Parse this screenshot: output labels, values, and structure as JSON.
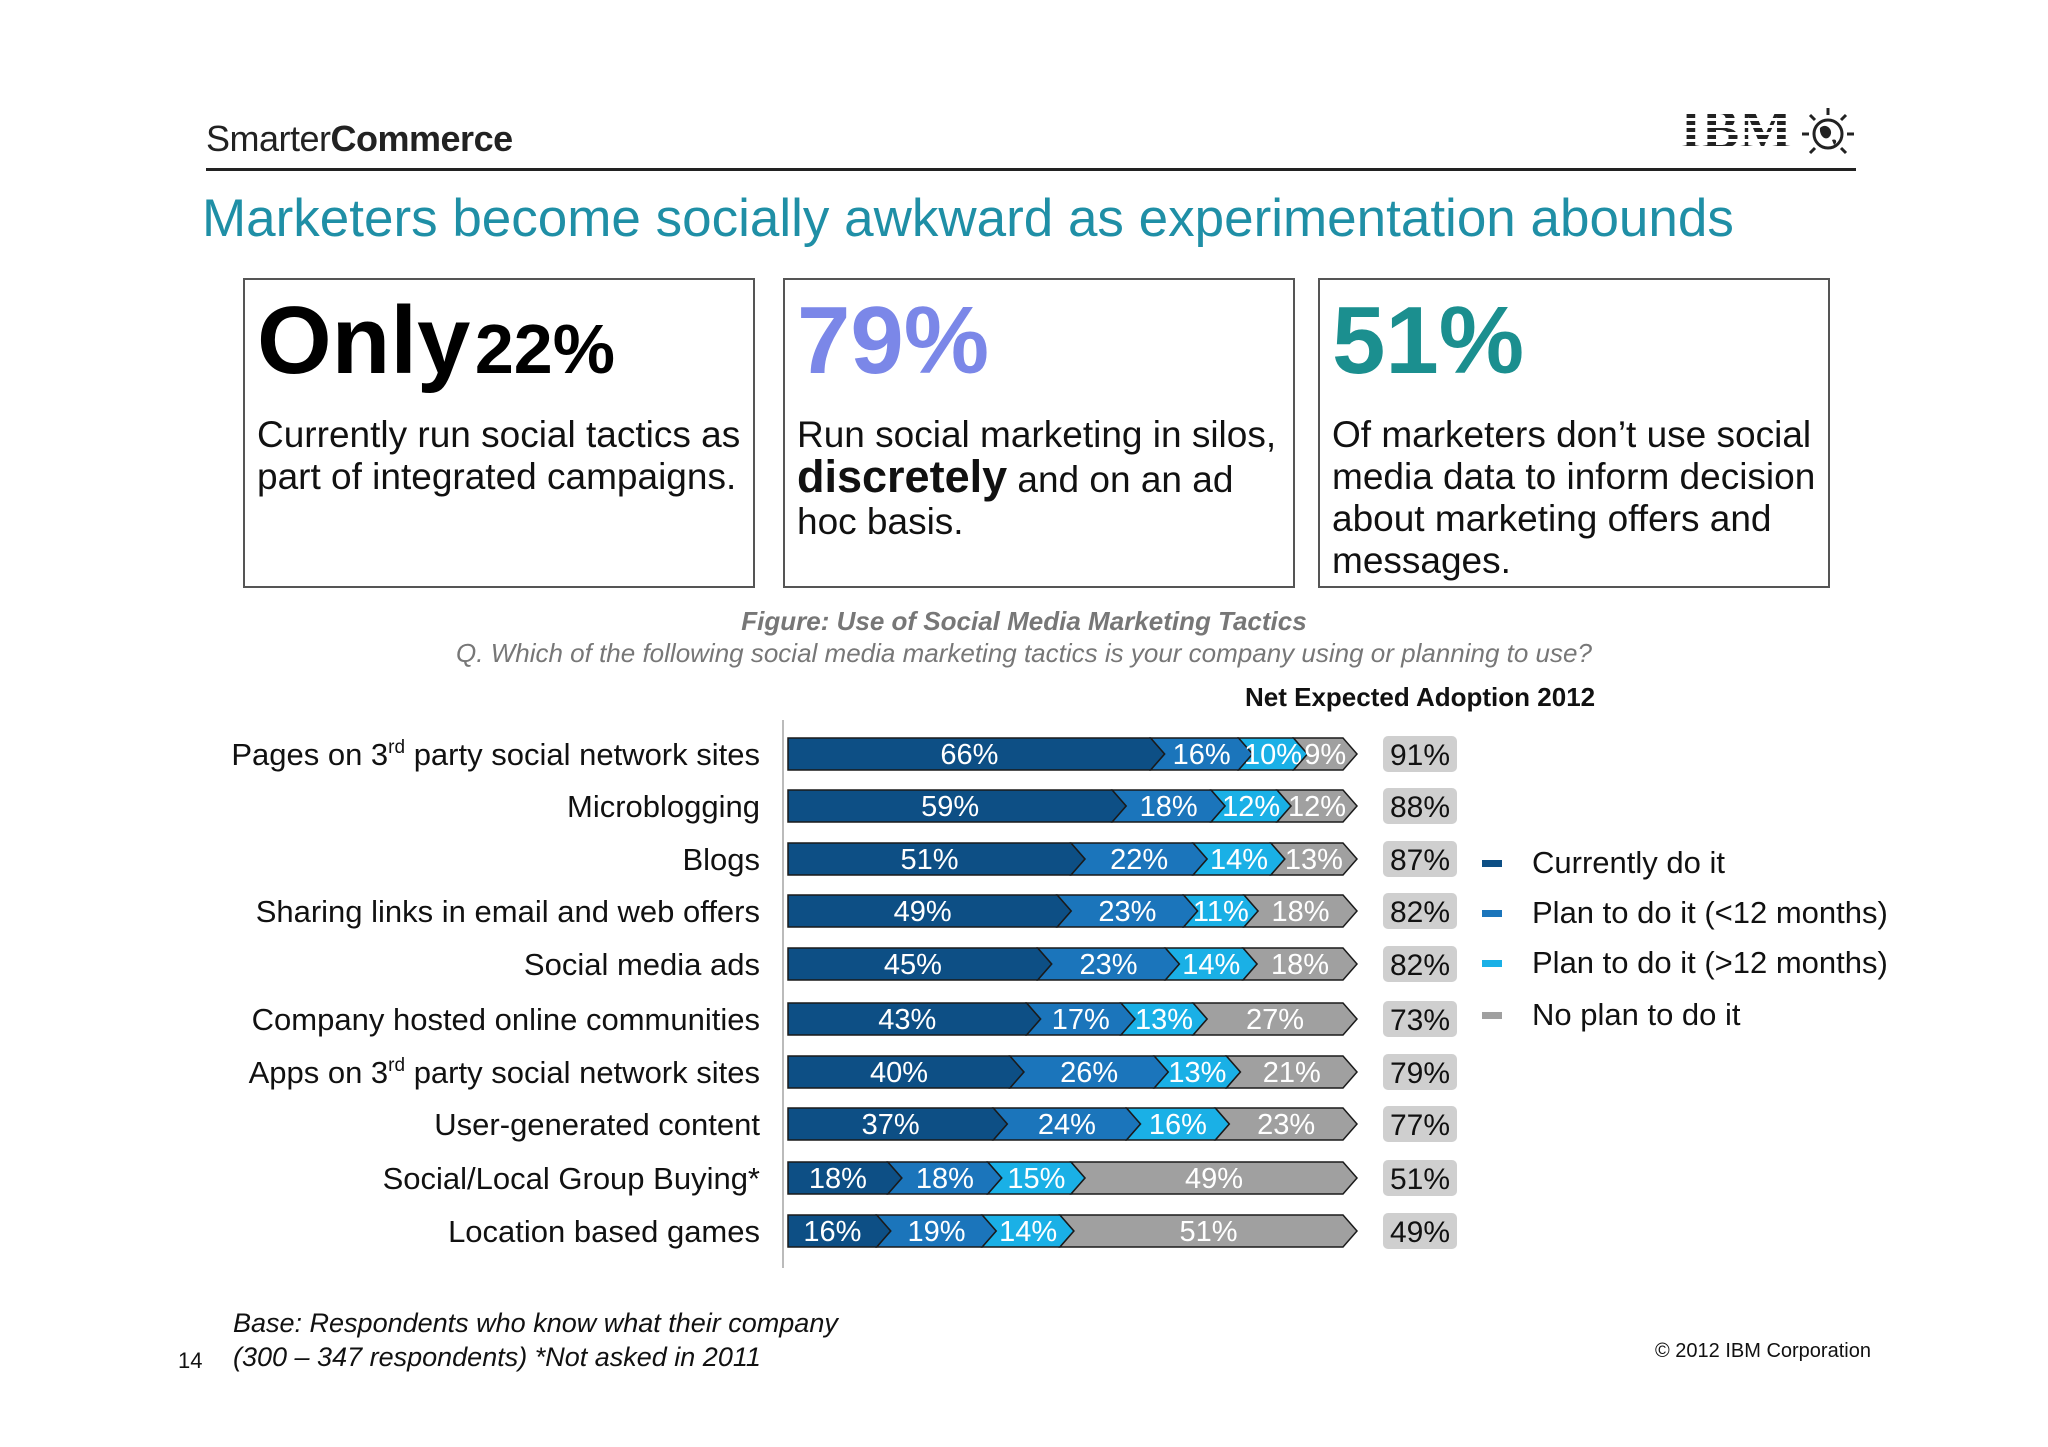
{
  "header": {
    "brand_light": "Smarter",
    "brand_bold": "Commerce",
    "logo_text": "IBM",
    "title": "Marketers become socially awkward as experimentation abounds"
  },
  "stats": [
    {
      "big_prefix": "Only",
      "big_value": "22%",
      "desc": "Currently run social tactics as part of integrated campaigns."
    },
    {
      "big_value": "79%",
      "desc_pre": "Run social marketing in silos,",
      "desc_bold": "discretely",
      "desc_post": "and on an ad hoc basis."
    },
    {
      "big_value": "51%",
      "desc": "Of marketers don’t use social media data to inform decision about marketing offers and messages."
    }
  ],
  "figure": {
    "title": "Figure: Use of Social Media Marketing Tactics",
    "question": "Q. Which of the following social media marketing tactics is your company using or planning to use?",
    "net_header": "Net Expected Adoption 2012"
  },
  "colors": {
    "currently": "#0d4f85",
    "plan_short": "#1b75bb",
    "plan_long": "#1ab0e6",
    "no_plan": "#a0a0a0",
    "title": "#1f8fa6",
    "stat2": "#7b87e8",
    "stat3": "#1b8f8f"
  },
  "chart_data": {
    "type": "bar",
    "orientation": "horizontal",
    "stacked": true,
    "title": "Figure: Use of Social Media Marketing Tactics",
    "categories": [
      "Pages on 3rd party social network sites",
      "Microblogging",
      "Blogs",
      "Sharing links in email and web offers",
      "Social media ads",
      "Company hosted online communities",
      "Apps on 3rd party social network sites",
      "User-generated content",
      "Social/Local Group Buying*",
      "Location based games"
    ],
    "series": [
      {
        "name": "Currently do it",
        "values": [
          66,
          59,
          51,
          49,
          45,
          43,
          40,
          37,
          18,
          16
        ]
      },
      {
        "name": "Plan to do it (<12 months)",
        "values": [
          16,
          18,
          22,
          23,
          23,
          17,
          26,
          24,
          18,
          19
        ]
      },
      {
        "name": "Plan to do it (>12 months)",
        "values": [
          10,
          12,
          14,
          11,
          14,
          13,
          13,
          16,
          15,
          14
        ]
      },
      {
        "name": "No plan to do it",
        "values": [
          9,
          12,
          13,
          18,
          18,
          27,
          21,
          23,
          49,
          51
        ]
      }
    ],
    "net_expected_adoption_2012": [
      91,
      88,
      87,
      82,
      82,
      73,
      79,
      77,
      51,
      49
    ],
    "xlim": [
      0,
      100
    ],
    "legend_position": "right"
  },
  "footer": {
    "base_line1": "Base: Respondents who know what their company",
    "base_line2": "(300 – 347 respondents) *Not asked in 2011",
    "page_number": "14",
    "copyright": "© 2012 IBM Corporation"
  }
}
